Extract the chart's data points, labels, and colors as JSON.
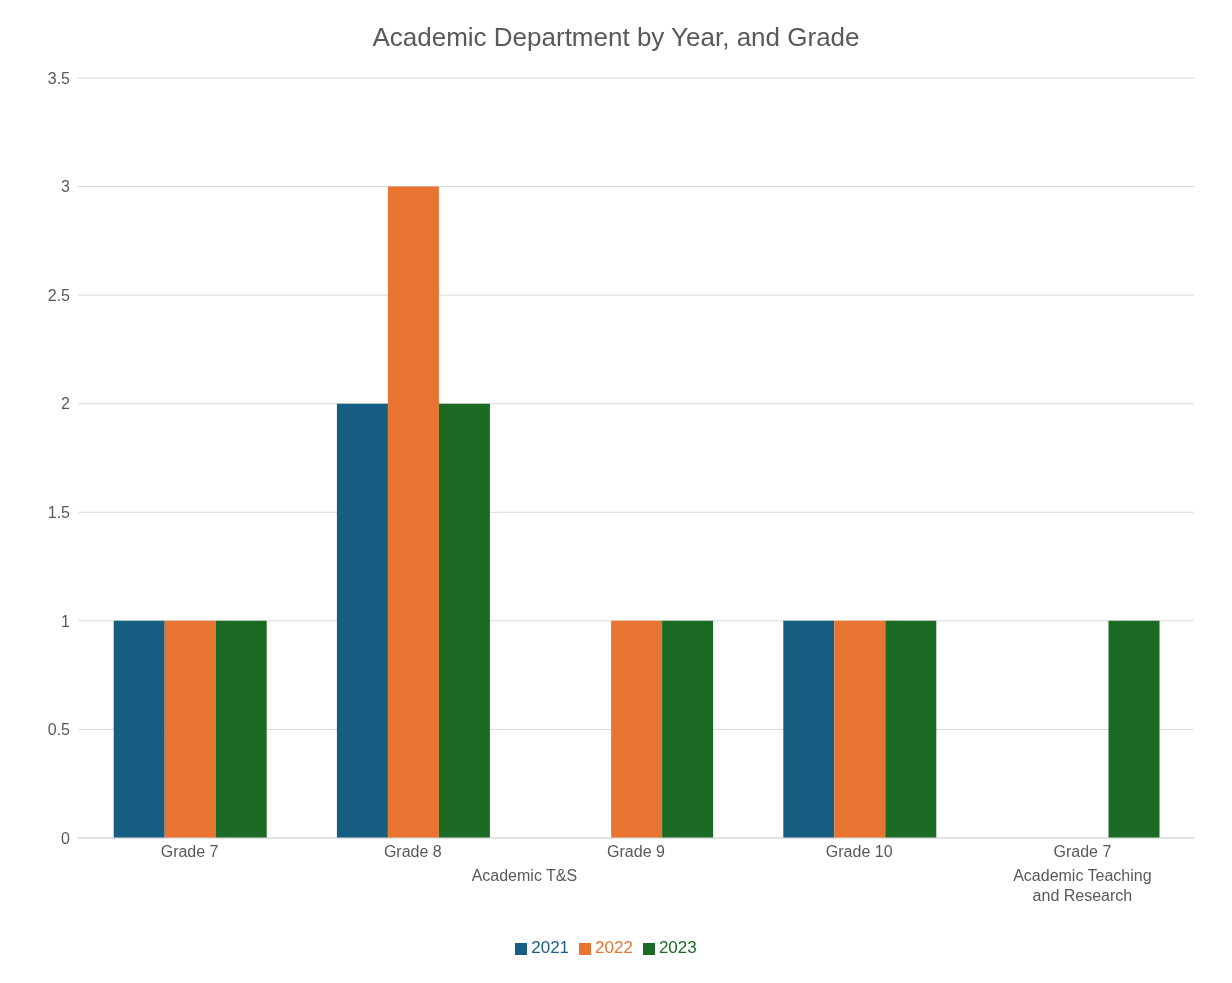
{
  "chart_data": {
    "type": "bar",
    "title": "Academic Department by Year, and Grade",
    "categories": [
      "Grade 7",
      "Grade 8",
      "Grade 9",
      "Grade 10",
      "Grade 7"
    ],
    "series": [
      {
        "name": "2021",
        "color": "#175e82",
        "values": [
          1,
          2,
          0,
          1,
          0
        ]
      },
      {
        "name": "2022",
        "color": "#e97431",
        "values": [
          1,
          3,
          1,
          1,
          0
        ]
      },
      {
        "name": "2023",
        "color": "#1b6b25",
        "values": [
          1,
          2,
          1,
          1,
          1
        ]
      }
    ],
    "annotations": [
      "Academic T&S",
      "Academic Teaching and Research"
    ],
    "ylim": [
      0,
      3.5
    ],
    "yticks": [
      0,
      0.5,
      1,
      1.5,
      2,
      2.5,
      3,
      3.5
    ],
    "grid": "y",
    "legend": "bottom"
  }
}
